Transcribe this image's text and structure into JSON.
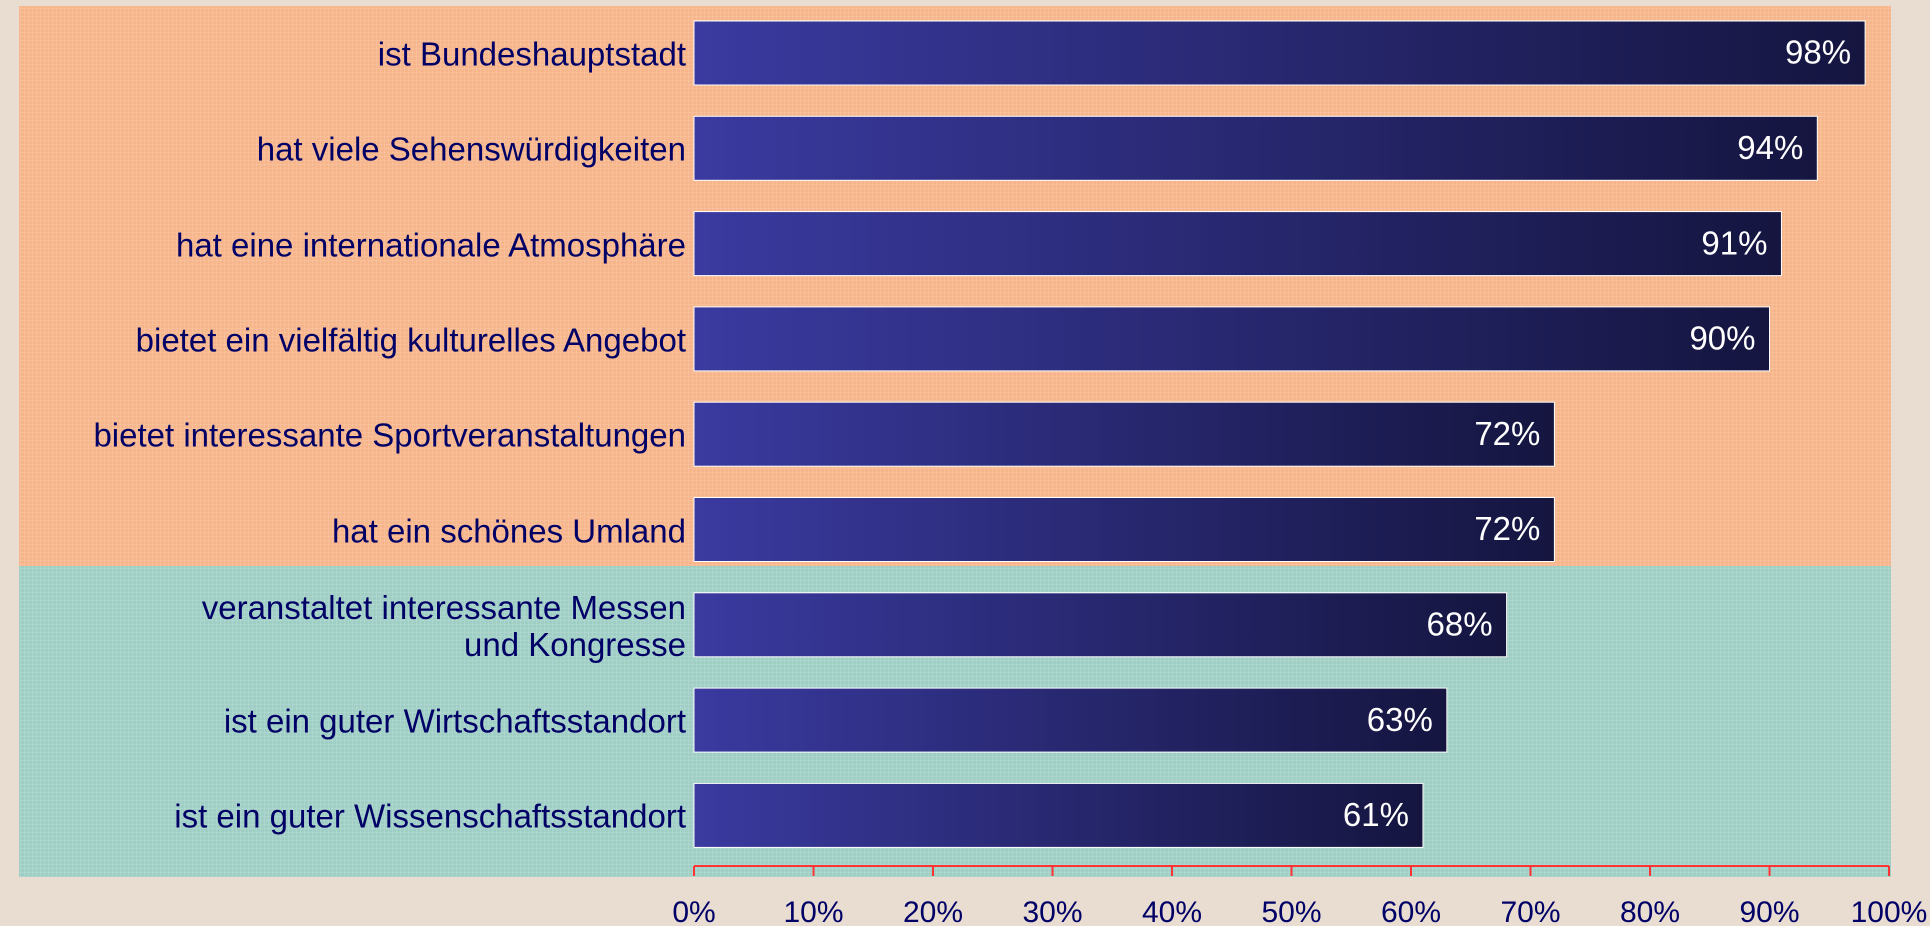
{
  "chart_data": {
    "type": "hbar",
    "categories": [
      "ist Bundeshauptstadt",
      "hat viele Sehenswürdigkeiten",
      "hat eine internationale Atmosphäre",
      "bietet ein vielfältig kulturelles Angebot",
      "bietet interessante Sportveranstaltungen",
      "hat ein schönes Umland",
      "veranstaltet interessante Messen\nund Kongresse",
      "ist ein guter Wirtschaftsstandort",
      "ist ein guter Wissenschaftsstandort"
    ],
    "values": [
      98,
      94,
      91,
      90,
      72,
      72,
      68,
      63,
      61
    ],
    "value_labels": [
      "98%",
      "94%",
      "91%",
      "90%",
      "72%",
      "72%",
      "68%",
      "63%",
      "61%"
    ],
    "color": "#333399",
    "xlim": [
      0,
      100
    ],
    "xticks": [
      {
        "value": 0,
        "label": "0%"
      },
      {
        "value": 10,
        "label": "10%"
      },
      {
        "value": 20,
        "label": "20%"
      },
      {
        "value": 30,
        "label": "30%"
      },
      {
        "value": 40,
        "label": "40%"
      },
      {
        "value": 50,
        "label": "50%"
      },
      {
        "value": 60,
        "label": "60%"
      },
      {
        "value": 70,
        "label": "70%"
      },
      {
        "value": 80,
        "label": "80%"
      },
      {
        "value": 90,
        "label": "90%"
      },
      {
        "value": 100,
        "label": "100%"
      }
    ]
  }
}
